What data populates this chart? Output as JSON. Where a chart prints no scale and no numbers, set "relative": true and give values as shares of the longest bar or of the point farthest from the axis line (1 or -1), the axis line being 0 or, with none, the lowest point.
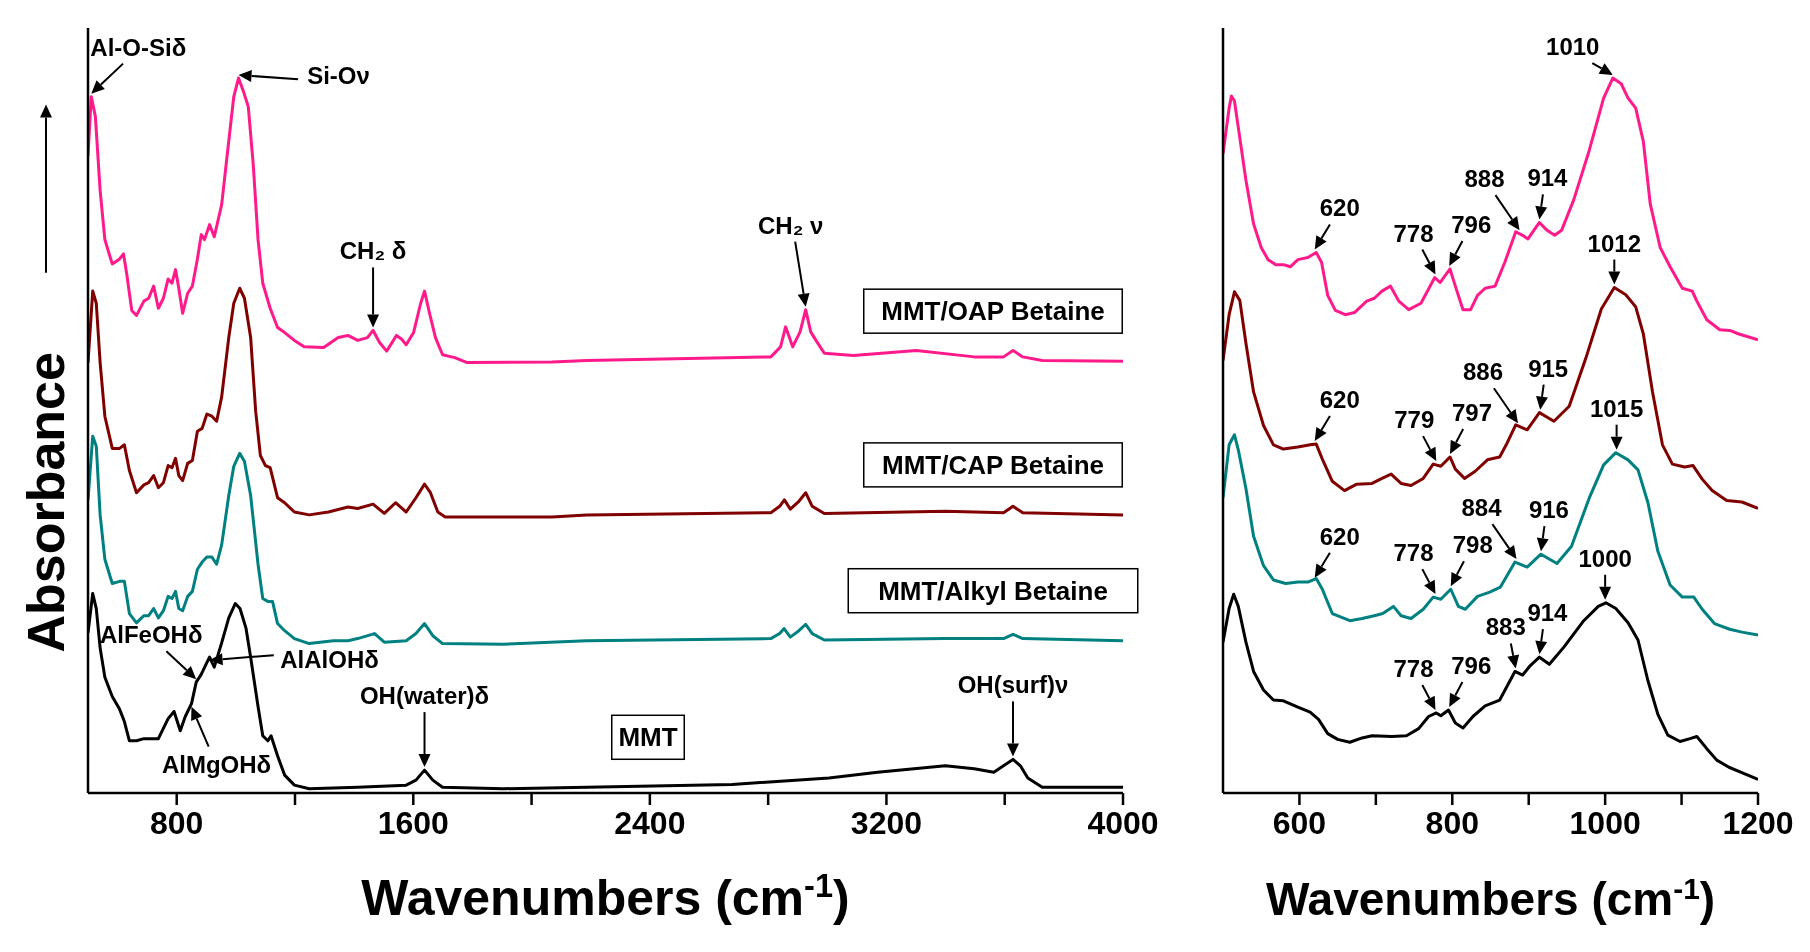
{
  "chart_data": [
    {
      "type": "line",
      "relative": true,
      "marker": "none",
      "line_style": "solid",
      "ylabel": "Absorbance",
      "xlabel": "Wavenumbers (cm$^{-1}$)",
      "xlim": [
        500,
        4000
      ],
      "xticks": [
        800,
        {
          "value": 1200,
          "label": null
        },
        1600,
        {
          "value": 2000,
          "label": null
        },
        2400,
        {
          "value": 2800,
          "label": null
        },
        3200,
        {
          "value": 3600,
          "label": null
        },
        4000
      ],
      "series": [
        {
          "name": "MMT/OAP Betaine",
          "color": "#ff1a8c",
          "x": [
            500,
            511,
            525,
            541,
            557,
            582,
            607,
            620,
            631,
            648,
            664,
            689,
            705,
            722,
            738,
            755,
            771,
            784,
            796,
            807,
            820,
            837,
            853,
            870,
            883,
            894,
            911,
            927,
            952,
            976,
            993,
            1009,
            1026,
            1042,
            1059,
            1075,
            1091,
            1116,
            1141,
            1165,
            1198,
            1231,
            1297,
            1346,
            1379,
            1412,
            1445,
            1464,
            1486,
            1510,
            1543,
            1560,
            1576,
            1601,
            1625,
            1638,
            1655,
            1675,
            1699,
            1740,
            1782,
            2069,
            2187,
            2809,
            2842,
            2859,
            2883,
            2908,
            2927,
            2944,
            2965,
            2990,
            3088,
            3301,
            3497,
            3596,
            3628,
            3661,
            3727,
            4000
          ],
          "values": [
            0.891,
            0.974,
            0.946,
            0.843,
            0.774,
            0.74,
            0.747,
            0.754,
            0.726,
            0.675,
            0.668,
            0.688,
            0.692,
            0.709,
            0.678,
            0.692,
            0.719,
            0.713,
            0.732,
            0.706,
            0.671,
            0.699,
            0.709,
            0.747,
            0.781,
            0.774,
            0.795,
            0.778,
            0.823,
            0.912,
            0.974,
            1.0,
            0.981,
            0.96,
            0.878,
            0.774,
            0.713,
            0.678,
            0.651,
            0.644,
            0.633,
            0.624,
            0.623,
            0.637,
            0.64,
            0.633,
            0.637,
            0.647,
            0.63,
            0.618,
            0.64,
            0.635,
            0.627,
            0.644,
            0.685,
            0.702,
            0.671,
            0.637,
            0.613,
            0.609,
            0.602,
            0.603,
            0.605,
            0.61,
            0.624,
            0.652,
            0.624,
            0.645,
            0.676,
            0.645,
            0.631,
            0.615,
            0.612,
            0.619,
            0.61,
            0.61,
            0.619,
            0.61,
            0.605,
            0.604
          ]
        },
        {
          "name": "MMT/CAP Betaine",
          "color": "#800000",
          "x": [
            500,
            516,
            528,
            541,
            557,
            582,
            607,
            623,
            640,
            664,
            689,
            705,
            722,
            738,
            755,
            771,
            784,
            796,
            807,
            820,
            837,
            853,
            870,
            886,
            902,
            919,
            935,
            952,
            976,
            993,
            1013,
            1029,
            1050,
            1067,
            1083,
            1100,
            1116,
            1141,
            1165,
            1198,
            1248,
            1313,
            1379,
            1412,
            1464,
            1502,
            1540,
            1576,
            1609,
            1638,
            1658,
            1683,
            1708,
            2069,
            2187,
            2809,
            2839,
            2855,
            2875,
            2904,
            2927,
            2949,
            2990,
            3399,
            3596,
            3628,
            3661,
            4000
          ],
          "values": [
            0.602,
            0.702,
            0.685,
            0.602,
            0.527,
            0.482,
            0.482,
            0.487,
            0.451,
            0.42,
            0.431,
            0.434,
            0.444,
            0.427,
            0.434,
            0.458,
            0.455,
            0.468,
            0.444,
            0.437,
            0.461,
            0.465,
            0.506,
            0.51,
            0.53,
            0.527,
            0.52,
            0.554,
            0.637,
            0.685,
            0.706,
            0.692,
            0.637,
            0.534,
            0.472,
            0.458,
            0.455,
            0.413,
            0.406,
            0.393,
            0.389,
            0.393,
            0.4,
            0.398,
            0.404,
            0.391,
            0.406,
            0.393,
            0.413,
            0.432,
            0.42,
            0.393,
            0.386,
            0.386,
            0.389,
            0.392,
            0.401,
            0.41,
            0.397,
            0.408,
            0.42,
            0.401,
            0.391,
            0.394,
            0.392,
            0.401,
            0.392,
            0.389
          ]
        },
        {
          "name": "MMT/Alkyl Betaine",
          "color": "#008080",
          "x": [
            500,
            516,
            528,
            541,
            557,
            582,
            607,
            623,
            640,
            664,
            689,
            705,
            722,
            738,
            755,
            771,
            784,
            796,
            807,
            820,
            837,
            853,
            870,
            886,
            902,
            919,
            935,
            952,
            976,
            993,
            1013,
            1029,
            1050,
            1075,
            1091,
            1108,
            1124,
            1141,
            1165,
            1198,
            1248,
            1330,
            1379,
            1412,
            1469,
            1502,
            1576,
            1609,
            1638,
            1666,
            1699,
            1905,
            2187,
            2809,
            2839,
            2854,
            2875,
            2904,
            2927,
            2949,
            2990,
            3399,
            3596,
            3628,
            3661,
            4000
          ],
          "values": [
            0.41,
            0.499,
            0.485,
            0.389,
            0.327,
            0.293,
            0.296,
            0.296,
            0.251,
            0.238,
            0.248,
            0.248,
            0.258,
            0.245,
            0.255,
            0.275,
            0.272,
            0.282,
            0.258,
            0.255,
            0.275,
            0.282,
            0.313,
            0.323,
            0.33,
            0.33,
            0.32,
            0.347,
            0.416,
            0.457,
            0.475,
            0.464,
            0.416,
            0.32,
            0.272,
            0.268,
            0.268,
            0.237,
            0.227,
            0.216,
            0.209,
            0.213,
            0.213,
            0.216,
            0.223,
            0.211,
            0.213,
            0.223,
            0.237,
            0.22,
            0.209,
            0.208,
            0.213,
            0.216,
            0.223,
            0.23,
            0.218,
            0.227,
            0.236,
            0.223,
            0.214,
            0.216,
            0.216,
            0.222,
            0.216,
            0.213
          ]
        },
        {
          "name": "MMT",
          "color": "#000000",
          "x": [
            500,
            516,
            528,
            541,
            557,
            582,
            607,
            623,
            640,
            664,
            689,
            738,
            771,
            791,
            812,
            829,
            850,
            866,
            883,
            899,
            911,
            927,
            952,
            976,
            998,
            1014,
            1034,
            1050,
            1075,
            1091,
            1108,
            1119,
            1141,
            1165,
            1198,
            1248,
            1412,
            1576,
            1609,
            1638,
            1666,
            1699,
            1905,
            2187,
            2678,
            3006,
            3170,
            3399,
            3497,
            3563,
            3596,
            3628,
            3653,
            3678,
            3727,
            4000
          ],
          "values": [
            0.224,
            0.279,
            0.258,
            0.203,
            0.162,
            0.135,
            0.117,
            0.1,
            0.073,
            0.073,
            0.076,
            0.076,
            0.104,
            0.114,
            0.087,
            0.107,
            0.125,
            0.155,
            0.166,
            0.18,
            0.19,
            0.176,
            0.21,
            0.245,
            0.265,
            0.258,
            0.231,
            0.19,
            0.121,
            0.08,
            0.073,
            0.08,
            0.052,
            0.025,
            0.011,
            0.006,
            0.008,
            0.011,
            0.018,
            0.032,
            0.018,
            0.008,
            0.006,
            0.008,
            0.012,
            0.021,
            0.029,
            0.038,
            0.034,
            0.029,
            0.038,
            0.047,
            0.038,
            0.021,
            0.008,
            0.008
          ]
        }
      ],
      "annotations": [
        {
          "text": "Al-O-Siδ",
          "x": 511,
          "y": 0.974
        },
        {
          "text": "Si-Oν",
          "x": 1009,
          "y": 1.0
        },
        {
          "text": "CH₂ δ",
          "x": 1464,
          "y": 0.647
        },
        {
          "text": "CH₂ ν",
          "x": 2927,
          "y": 0.676
        },
        {
          "text": "AlFeOHδ",
          "x": 866,
          "y": 0.155
        },
        {
          "text": "AlAlOHδ",
          "x": 911,
          "y": 0.19
        },
        {
          "text": "AlMgOHδ",
          "x": 850,
          "y": 0.125
        },
        {
          "text": "OH(water)δ",
          "x": 1638,
          "y": 0.032
        },
        {
          "text": "OH(surf)ν",
          "x": 3628,
          "y": 0.047
        }
      ]
    },
    {
      "type": "line",
      "relative": true,
      "marker": "none",
      "line_style": "solid",
      "xlabel": "Wavenumbers (cm$^{-1}$)",
      "xlim": [
        500,
        1200
      ],
      "xticks": [
        600,
        {
          "value": 700,
          "label": null
        },
        800,
        {
          "value": 900,
          "label": null
        },
        1000,
        {
          "value": 1100,
          "label": null
        },
        1200
      ],
      "series": [
        {
          "color": "#ff1a8c",
          "x": [
            500,
            508,
            511,
            515,
            520,
            530,
            540,
            550,
            559,
            569,
            579,
            588,
            598,
            611,
            622,
            629,
            637,
            647,
            660,
            672,
            688,
            698,
            708,
            719,
            730,
            743,
            759,
            769,
            777,
            784,
            797,
            804,
            814,
            824,
            833,
            843,
            856,
            869,
            883,
            892,
            899,
            914,
            924,
            934,
            943,
            959,
            979,
            998,
            1010,
            1021,
            1030,
            1040,
            1050,
            1059,
            1072,
            1085,
            1101,
            1114,
            1120,
            1133,
            1150,
            1163,
            1175,
            1200
          ],
          "values": [
            0.894,
            0.958,
            0.975,
            0.968,
            0.931,
            0.857,
            0.796,
            0.763,
            0.746,
            0.739,
            0.739,
            0.736,
            0.746,
            0.749,
            0.756,
            0.742,
            0.696,
            0.675,
            0.669,
            0.672,
            0.688,
            0.692,
            0.702,
            0.709,
            0.688,
            0.676,
            0.685,
            0.705,
            0.721,
            0.714,
            0.733,
            0.709,
            0.676,
            0.676,
            0.696,
            0.706,
            0.709,
            0.743,
            0.785,
            0.78,
            0.775,
            0.798,
            0.787,
            0.78,
            0.787,
            0.83,
            0.898,
            0.972,
            1.0,
            0.992,
            0.972,
            0.958,
            0.911,
            0.824,
            0.763,
            0.736,
            0.706,
            0.702,
            0.688,
            0.662,
            0.648,
            0.647,
            0.642,
            0.634
          ]
        },
        {
          "color": "#800000",
          "x": [
            500,
            508,
            515,
            522,
            530,
            540,
            553,
            566,
            579,
            598,
            614,
            622,
            630,
            643,
            659,
            675,
            695,
            708,
            720,
            733,
            746,
            762,
            775,
            785,
            797,
            804,
            816,
            830,
            846,
            862,
            872,
            883,
            898,
            914,
            933,
            953,
            975,
            995,
            1012,
            1027,
            1040,
            1050,
            1062,
            1075,
            1088,
            1104,
            1115,
            1127,
            1140,
            1159,
            1179,
            1200
          ],
          "values": [
            0.605,
            0.669,
            0.701,
            0.689,
            0.629,
            0.561,
            0.514,
            0.487,
            0.481,
            0.484,
            0.487,
            0.488,
            0.467,
            0.436,
            0.423,
            0.432,
            0.433,
            0.44,
            0.446,
            0.433,
            0.43,
            0.44,
            0.46,
            0.457,
            0.47,
            0.453,
            0.44,
            0.45,
            0.466,
            0.47,
            0.49,
            0.515,
            0.508,
            0.532,
            0.52,
            0.541,
            0.609,
            0.677,
            0.707,
            0.697,
            0.68,
            0.642,
            0.561,
            0.487,
            0.46,
            0.456,
            0.458,
            0.439,
            0.423,
            0.409,
            0.407,
            0.398
          ]
        },
        {
          "color": "#008080",
          "x": [
            500,
            508,
            515,
            520,
            530,
            540,
            553,
            566,
            582,
            598,
            611,
            622,
            630,
            643,
            666,
            682,
            698,
            709,
            723,
            733,
            746,
            762,
            775,
            785,
            798,
            808,
            817,
            833,
            849,
            863,
            882,
            898,
            916,
            937,
            956,
            979,
            998,
            1014,
            1030,
            1043,
            1056,
            1069,
            1085,
            1101,
            1116,
            1127,
            1143,
            1163,
            1179,
            1200
          ],
          "values": [
            0.413,
            0.487,
            0.501,
            0.48,
            0.426,
            0.359,
            0.318,
            0.298,
            0.293,
            0.295,
            0.295,
            0.3,
            0.285,
            0.251,
            0.241,
            0.244,
            0.248,
            0.251,
            0.261,
            0.248,
            0.244,
            0.257,
            0.274,
            0.271,
            0.285,
            0.261,
            0.257,
            0.275,
            0.281,
            0.288,
            0.323,
            0.316,
            0.334,
            0.321,
            0.345,
            0.412,
            0.459,
            0.476,
            0.466,
            0.452,
            0.406,
            0.338,
            0.291,
            0.274,
            0.274,
            0.257,
            0.237,
            0.229,
            0.225,
            0.221
          ]
        },
        {
          "color": "#000000",
          "x": [
            500,
            508,
            514,
            520,
            530,
            540,
            553,
            566,
            579,
            598,
            614,
            625,
            637,
            650,
            666,
            682,
            695,
            721,
            740,
            756,
            769,
            779,
            785,
            795,
            804,
            814,
            827,
            843,
            862,
            872,
            882,
            892,
            901,
            914,
            927,
            946,
            972,
            991,
            1001,
            1014,
            1030,
            1043,
            1056,
            1069,
            1082,
            1098,
            1111,
            1120,
            1133,
            1146,
            1162,
            1178,
            1200
          ],
          "values": [
            0.211,
            0.258,
            0.278,
            0.261,
            0.211,
            0.17,
            0.144,
            0.13,
            0.129,
            0.12,
            0.113,
            0.103,
            0.083,
            0.075,
            0.071,
            0.077,
            0.08,
            0.079,
            0.08,
            0.09,
            0.107,
            0.112,
            0.108,
            0.116,
            0.098,
            0.091,
            0.107,
            0.122,
            0.13,
            0.15,
            0.17,
            0.165,
            0.177,
            0.19,
            0.18,
            0.204,
            0.241,
            0.261,
            0.266,
            0.258,
            0.238,
            0.214,
            0.157,
            0.11,
            0.081,
            0.072,
            0.076,
            0.079,
            0.062,
            0.046,
            0.036,
            0.029,
            0.019
          ]
        }
      ],
      "annotations": [
        {
          "text": "620",
          "x": 620,
          "y": 0.756
        },
        {
          "text": "778",
          "x": 778,
          "y": 0.721
        },
        {
          "text": "796",
          "x": 796,
          "y": 0.733
        },
        {
          "text": "888",
          "x": 888,
          "y": 0.783
        },
        {
          "text": "914",
          "x": 914,
          "y": 0.798
        },
        {
          "text": "1010",
          "x": 1010,
          "y": 1.0
        },
        {
          "text": "620",
          "x": 620,
          "y": 0.488
        },
        {
          "text": "779",
          "x": 779,
          "y": 0.46
        },
        {
          "text": "797",
          "x": 797,
          "y": 0.47
        },
        {
          "text": "886",
          "x": 886,
          "y": 0.513
        },
        {
          "text": "915",
          "x": 915,
          "y": 0.532
        },
        {
          "text": "1012",
          "x": 1012,
          "y": 0.707
        },
        {
          "text": "620",
          "x": 620,
          "y": 0.297
        },
        {
          "text": "778",
          "x": 778,
          "y": 0.274
        },
        {
          "text": "798",
          "x": 798,
          "y": 0.285
        },
        {
          "text": "884",
          "x": 884,
          "y": 0.323
        },
        {
          "text": "916",
          "x": 916,
          "y": 0.334
        },
        {
          "text": "1015",
          "x": 1015,
          "y": 0.476
        },
        {
          "text": "778",
          "x": 778,
          "y": 0.112
        },
        {
          "text": "796",
          "x": 796,
          "y": 0.116
        },
        {
          "text": "883",
          "x": 883,
          "y": 0.17
        },
        {
          "text": "914",
          "x": 914,
          "y": 0.19
        },
        {
          "text": "1000",
          "x": 1000,
          "y": 0.266
        }
      ]
    }
  ]
}
